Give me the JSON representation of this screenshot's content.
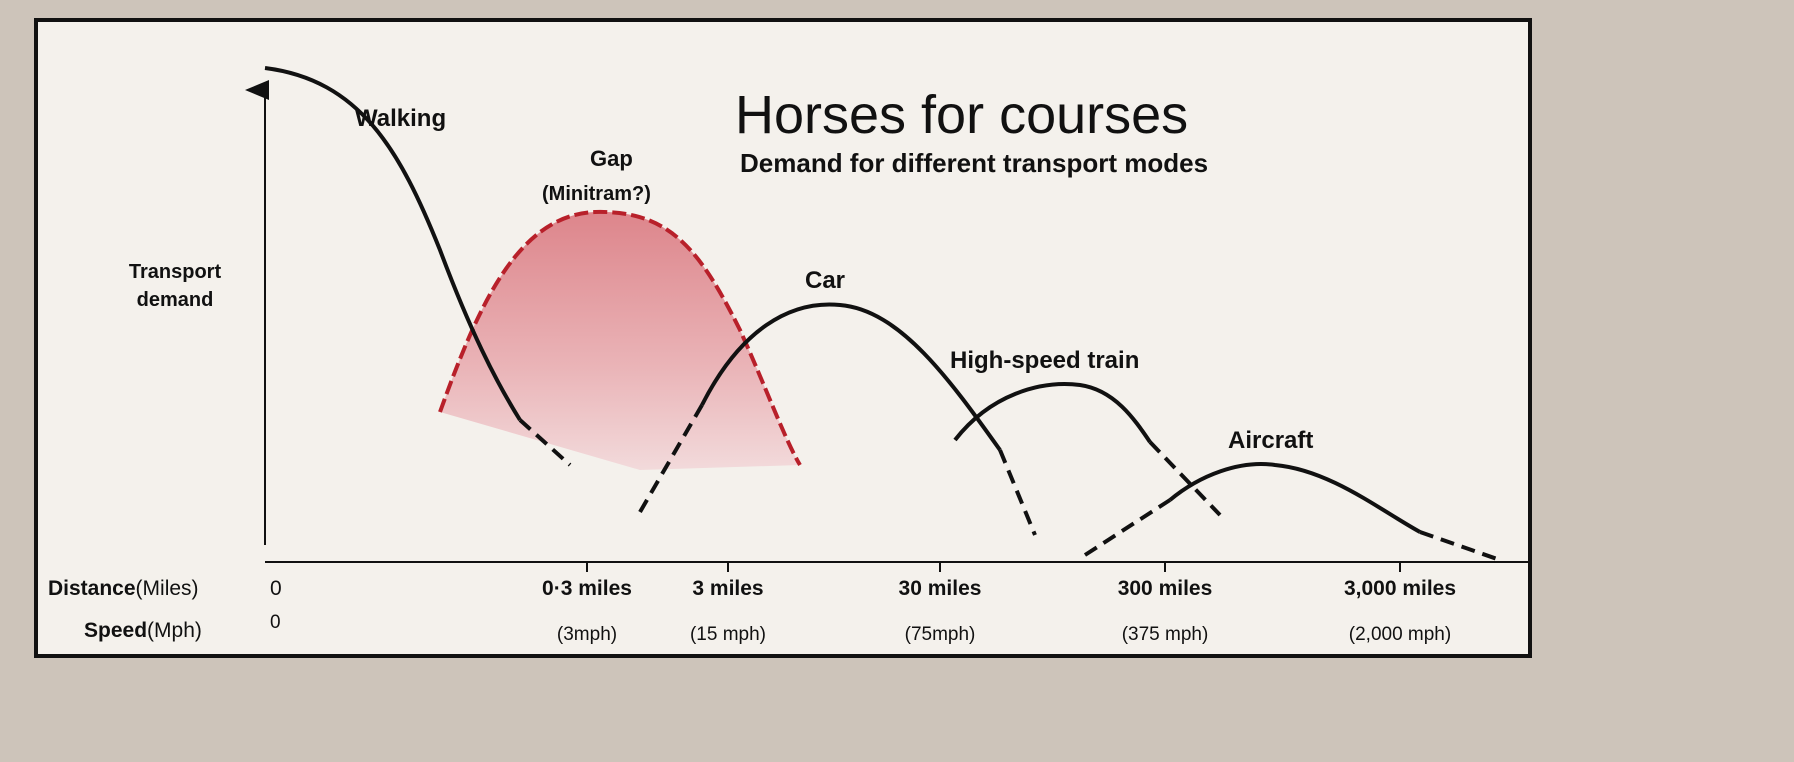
{
  "title": "Horses for courses",
  "subtitle": "Demand for different transport modes",
  "y_axis": {
    "label": [
      "Transport",
      "demand"
    ]
  },
  "curves": {
    "walking": "Walking",
    "gap": "Gap",
    "gap_note": "(Minitram?)",
    "car": "Car",
    "train": "High-speed train",
    "aircraft": "Aircraft"
  },
  "distance": {
    "label": "Distance",
    "unit": "(Miles)",
    "ticks": [
      "0",
      "0·3 miles",
      "3 miles",
      "30 miles",
      "300 miles",
      "3,000 miles"
    ]
  },
  "speed": {
    "label": "Speed",
    "unit": "(Mph)",
    "ticks": [
      "0",
      "(3mph)",
      "(15 mph)",
      "(75mph)",
      "(375 mph)",
      "(2,000 mph)"
    ]
  }
}
